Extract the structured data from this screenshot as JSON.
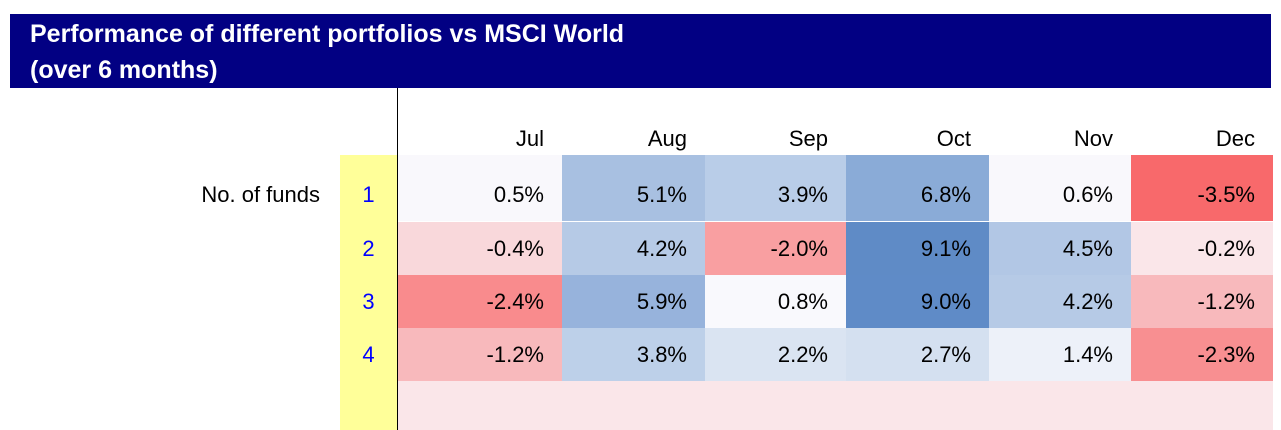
{
  "title": {
    "line1": "Performance of different portfolios vs MSCI World",
    "line2": "(over 6 months)"
  },
  "chart_data": {
    "type": "heatmap",
    "title": "Performance of different portfolios vs MSCI World (over 6 months)",
    "row_axis_label": "No. of funds",
    "columns": [
      "Jul",
      "Aug",
      "Sep",
      "Oct",
      "Nov",
      "Dec"
    ],
    "rows": [
      {
        "label": "1",
        "values": [
          "0.5%",
          "5.1%",
          "3.9%",
          "6.8%",
          "0.6%",
          "-3.5%"
        ],
        "colors": [
          "#f9f8fc",
          "#a8c0e1",
          "#b9cde8",
          "#8aabd7",
          "#f9f8fc",
          "#f8696b"
        ]
      },
      {
        "label": "2",
        "values": [
          "-0.4%",
          "4.2%",
          "-2.0%",
          "9.1%",
          "4.5%",
          "-0.2%"
        ],
        "colors": [
          "#f9d8db",
          "#b6cae6",
          "#f99fa1",
          "#5f8bc6",
          "#b2c7e5",
          "#fae6e9"
        ]
      },
      {
        "label": "3",
        "values": [
          "-2.4%",
          "5.9%",
          "0.8%",
          "9.0%",
          "4.2%",
          "-1.2%"
        ],
        "colors": [
          "#f98b8d",
          "#97b3dc",
          "#f9f9fd",
          "#5f8bc7",
          "#b6cae6",
          "#f8b9bc"
        ]
      },
      {
        "label": "4",
        "values": [
          "-1.2%",
          "3.8%",
          "2.2%",
          "2.7%",
          "1.4%",
          "-2.3%"
        ],
        "colors": [
          "#f8b9bc",
          "#bdd0e9",
          "#dae4f2",
          "#d4e0f0",
          "#edf1f9",
          "#f88f91"
        ]
      }
    ]
  }
}
